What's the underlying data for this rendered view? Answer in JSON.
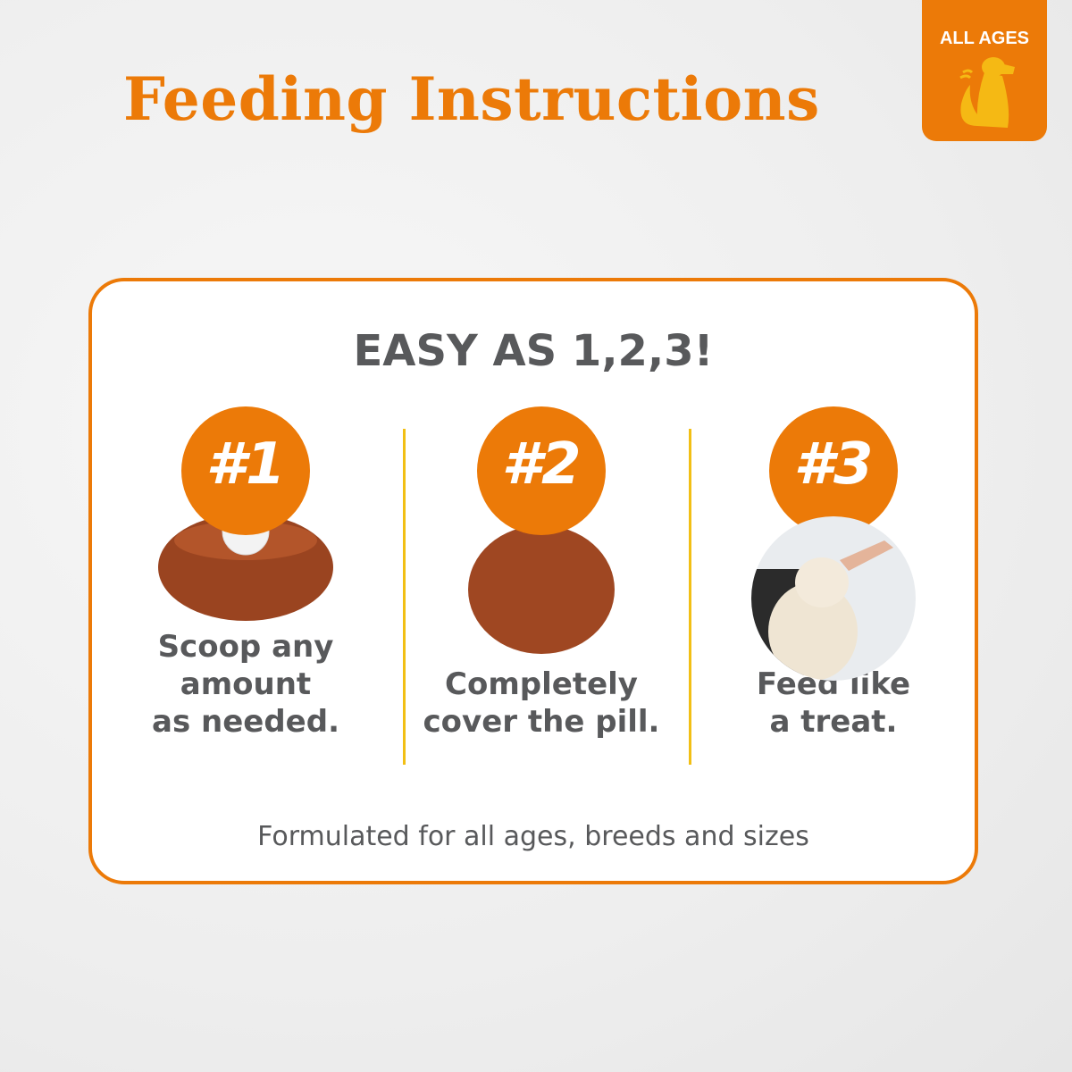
{
  "title": "Feeding Instructions",
  "badge": {
    "label": "ALL AGES",
    "icon": "sitting-dog-icon"
  },
  "card": {
    "heading": "EASY AS 1,2,3!",
    "steps": [
      {
        "number": "#1",
        "caption_lines": [
          "Scoop any",
          "amount",
          "as needed."
        ],
        "image": "pill-in-paste-ball"
      },
      {
        "number": "#2",
        "caption_lines": [
          "Completely",
          "cover the pill."
        ],
        "image": "covered-paste-ball"
      },
      {
        "number": "#3",
        "caption_lines": [
          "Feed like",
          "a treat."
        ],
        "image": "dog-eating-treat-photo"
      }
    ],
    "footer": "Formulated for all ages, breeds and sizes"
  },
  "colors": {
    "accent": "#ec7a08",
    "divider": "#f2bf14",
    "text": "#58595b"
  }
}
